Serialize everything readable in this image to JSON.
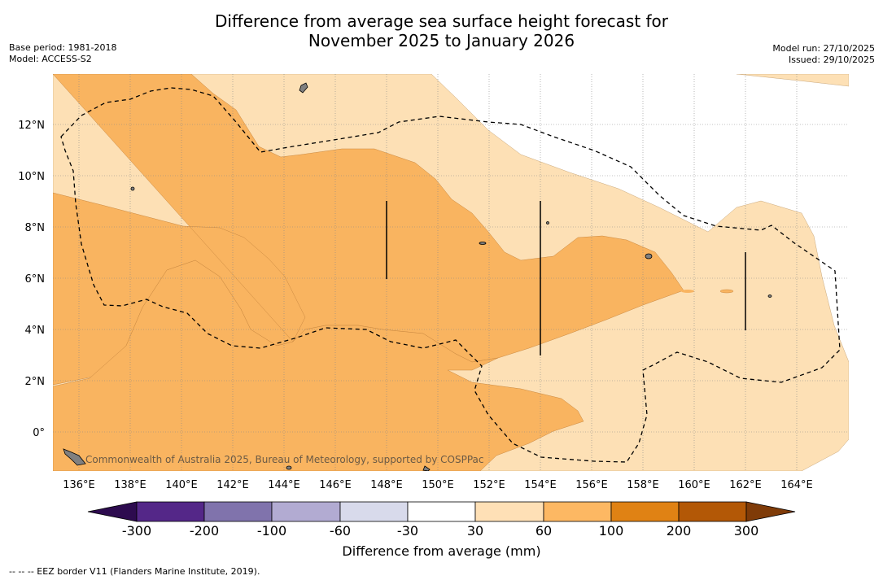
{
  "header": {
    "title_line1": "Difference from average sea surface height forecast for",
    "title_line2": "November 2025 to January 2026",
    "base_period": "Base period: 1981-2018",
    "model": "Model: ACCESS-S2",
    "model_run": "Model run: 27/10/2025",
    "issued": "Issued: 29/10/2025"
  },
  "map": {
    "lon_labels": [
      "136°E",
      "138°E",
      "140°E",
      "142°E",
      "144°E",
      "146°E",
      "148°E",
      "150°E",
      "152°E",
      "154°E",
      "156°E",
      "158°E",
      "160°E",
      "162°E",
      "164°E"
    ],
    "lat_labels": [
      "12°N",
      "10°N",
      "8°N",
      "6°N",
      "4°N",
      "2°N",
      "0°"
    ],
    "credit": "Commonwealth of Australia 2025, Bureau of Meteorology, supported by COSPPac",
    "colors": {
      "light_positive": "#fde0b5",
      "mid_positive": "#f9b460",
      "land": "#808080"
    }
  },
  "colorbar": {
    "title": "Difference from average (mm)",
    "tick_labels": [
      "-300",
      "-200",
      "-100",
      "-60",
      "-30",
      "30",
      "60",
      "100",
      "200",
      "300"
    ],
    "colors": [
      "#2d0b4f",
      "#542788",
      "#8073ac",
      "#b2abd2",
      "#d8daeb",
      "#ffffff",
      "#fee0b6",
      "#fdb863",
      "#e08214",
      "#b35806",
      "#7f3b08"
    ]
  },
  "footer": {
    "text": "--  --  -- EEZ border V11 (Flanders Marine Institute, 2019)."
  }
}
